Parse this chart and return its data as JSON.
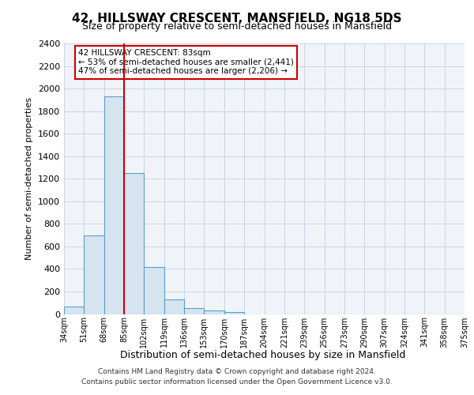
{
  "title1": "42, HILLSWAY CRESCENT, MANSFIELD, NG18 5DS",
  "title2": "Size of property relative to semi-detached houses in Mansfield",
  "xlabel": "Distribution of semi-detached houses by size in Mansfield",
  "ylabel": "Number of semi-detached properties",
  "bin_edges": [
    "34sqm",
    "51sqm",
    "68sqm",
    "85sqm",
    "102sqm",
    "119sqm",
    "136sqm",
    "153sqm",
    "170sqm",
    "187sqm",
    "204sqm",
    "221sqm",
    "239sqm",
    "256sqm",
    "273sqm",
    "290sqm",
    "307sqm",
    "324sqm",
    "341sqm",
    "358sqm",
    "375sqm"
  ],
  "bar_values": [
    65,
    700,
    1930,
    1250,
    420,
    130,
    50,
    35,
    20,
    0,
    0,
    0,
    0,
    0,
    0,
    0,
    0,
    0,
    0,
    0
  ],
  "bar_color": "#d6e4f0",
  "bar_edge_color": "#5a9ec9",
  "vline_color": "#cc0000",
  "vline_x": 2.5,
  "annotation_text": "42 HILLSWAY CRESCENT: 83sqm\n← 53% of semi-detached houses are smaller (2,441)\n47% of semi-detached houses are larger (2,206) →",
  "annotation_box_color": "#ffffff",
  "annotation_box_edge_color": "#cc0000",
  "ylim": [
    0,
    2400
  ],
  "yticks": [
    0,
    200,
    400,
    600,
    800,
    1000,
    1200,
    1400,
    1600,
    1800,
    2000,
    2200,
    2400
  ],
  "bg_color": "#f0f4f9",
  "grid_color": "#c8d4e8",
  "footer1": "Contains HM Land Registry data © Crown copyright and database right 2024.",
  "footer2": "Contains public sector information licensed under the Open Government Licence v3.0."
}
